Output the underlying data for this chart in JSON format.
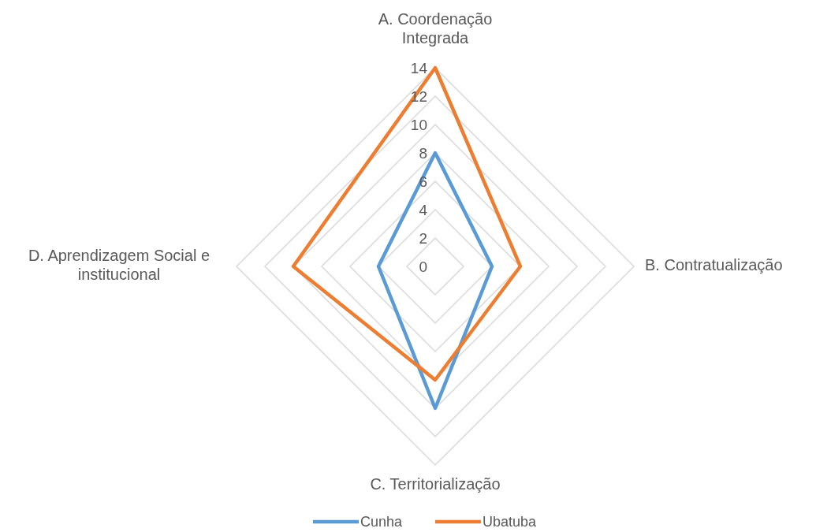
{
  "chart_data": {
    "type": "radar",
    "categories": [
      "A. Coordenação Integrada",
      "B.  Contratualização",
      "C. Territorialização",
      "D. Aprendizagem Social e institucional"
    ],
    "series": [
      {
        "name": "Cunha",
        "color": "#5b9bd5",
        "values": [
          8,
          4,
          10,
          4
        ]
      },
      {
        "name": "Ubatuba",
        "color": "#ed7d31",
        "values": [
          14,
          6,
          8,
          10
        ]
      }
    ],
    "ylim": [
      0,
      14
    ],
    "yticks": [
      0,
      2,
      4,
      6,
      8,
      10,
      12,
      14
    ],
    "grid": true,
    "legend": "bottom",
    "marker": "none"
  }
}
